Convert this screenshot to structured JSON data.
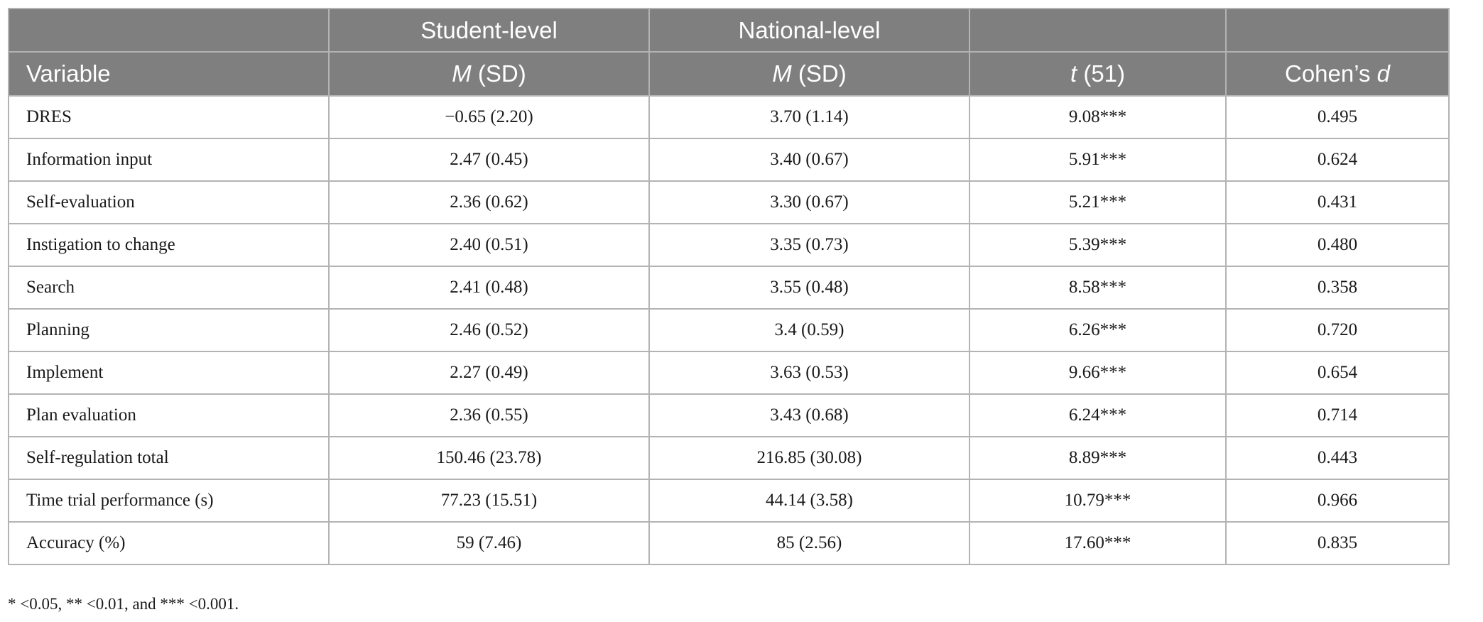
{
  "table": {
    "group_headers": [
      "",
      "Student-level",
      "National-level",
      "",
      ""
    ],
    "column_headers": [
      {
        "main": "Variable",
        "italic": "",
        "rest": ""
      },
      {
        "main": "",
        "italic": "M",
        "rest": " (SD)"
      },
      {
        "main": "",
        "italic": "M",
        "rest": " (SD)"
      },
      {
        "main": "",
        "italic": "t",
        "rest": " (51)"
      },
      {
        "main": "Cohen’s ",
        "italic": "d",
        "rest": ""
      }
    ],
    "rows": [
      [
        "DRES",
        "−0.65 (2.20)",
        "3.70 (1.14)",
        "9.08***",
        "0.495"
      ],
      [
        "Information input",
        "2.47 (0.45)",
        "3.40 (0.67)",
        "5.91***",
        "0.624"
      ],
      [
        "Self-evaluation",
        "2.36 (0.62)",
        "3.30 (0.67)",
        "5.21***",
        "0.431"
      ],
      [
        "Instigation to change",
        "2.40 (0.51)",
        "3.35 (0.73)",
        "5.39***",
        "0.480"
      ],
      [
        "Search",
        "2.41 (0.48)",
        "3.55 (0.48)",
        "8.58***",
        "0.358"
      ],
      [
        "Planning",
        "2.46 (0.52)",
        "3.4 (0.59)",
        "6.26***",
        "0.720"
      ],
      [
        "Implement",
        "2.27 (0.49)",
        "3.63 (0.53)",
        "9.66***",
        "0.654"
      ],
      [
        "Plan evaluation",
        "2.36 (0.55)",
        "3.43 (0.68)",
        "6.24***",
        "0.714"
      ],
      [
        "Self-regulation total",
        "150.46 (23.78)",
        "216.85 (30.08)",
        "8.89***",
        "0.443"
      ],
      [
        "Time trial performance (s)",
        "77.23 (15.51)",
        "44.14 (3.58)",
        "10.79***",
        "0.966"
      ],
      [
        "Accuracy (%)",
        "59 (7.46)",
        "85 (2.56)",
        "17.60***",
        "0.835"
      ]
    ]
  },
  "footnote": "* <0.05, ** <0.01, and *** <0.001."
}
